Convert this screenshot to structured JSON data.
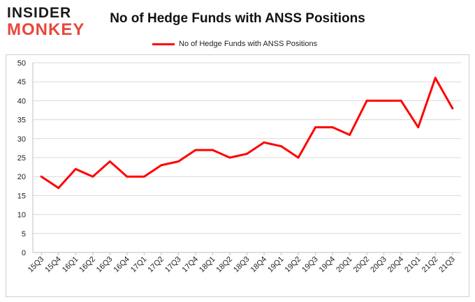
{
  "brand": {
    "line1": "INSIDER",
    "line2": "MONKEY"
  },
  "colors": {
    "series": "#ff0000",
    "grid": "#d9d9d9",
    "brand_red": "#e8473c"
  },
  "chart_data": {
    "type": "line",
    "title": "No of Hedge Funds with ANSS Positions",
    "xlabel": "",
    "ylabel": "",
    "ylim": [
      0,
      50
    ],
    "yticks": [
      0,
      5,
      10,
      15,
      20,
      25,
      30,
      35,
      40,
      45,
      50
    ],
    "grid": true,
    "legend_position": "top-center",
    "categories": [
      "15Q3",
      "15Q4",
      "16Q1",
      "16Q2",
      "16Q3",
      "16Q4",
      "17Q1",
      "17Q2",
      "17Q3",
      "17Q4",
      "18Q1",
      "18Q2",
      "18Q3",
      "18Q4",
      "19Q1",
      "19Q2",
      "19Q3",
      "19Q4",
      "20Q1",
      "20Q2",
      "20Q3",
      "20Q4",
      "21Q1",
      "21Q2",
      "21Q3"
    ],
    "series": [
      {
        "name": "No of Hedge Funds with ANSS Positions",
        "values": [
          20,
          17,
          22,
          20,
          24,
          20,
          20,
          23,
          24,
          27,
          27,
          25,
          26,
          29,
          28,
          25,
          33,
          33,
          31,
          40,
          40,
          40,
          33,
          46,
          38
        ]
      }
    ]
  }
}
